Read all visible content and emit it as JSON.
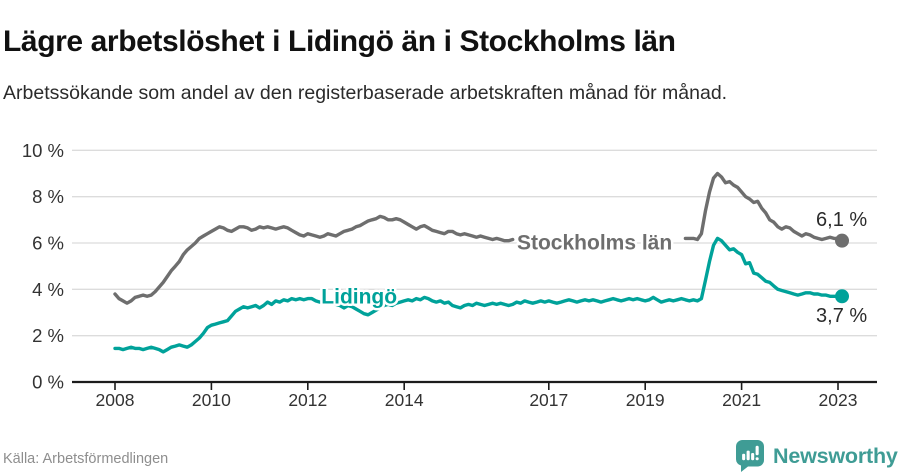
{
  "title": "Lägre arbetslöshet i Lidingö än i Stockholms län",
  "subtitle": "Arbetssökande som andel av den registerbaserade arbetskraften månad för månad.",
  "source": "Källa: Arbetsförmedlingen",
  "logo": {
    "text": "Newsworthy",
    "color": "#3f9c95",
    "icon": "newsworthy-speech-bubble-chart-icon"
  },
  "colors": {
    "stockholm_line": "#6e6e6e",
    "lidingo_line": "#00a29a",
    "axis": "#1c1c1c",
    "grid": "#dcdcdc",
    "tick_label": "#333333",
    "end_label": "#2b2b2b"
  },
  "chart_data": {
    "type": "line",
    "title": "Lägre arbetslöshet i Lidingö än i Stockholms län",
    "subtitle": "Arbetssökande som andel av den registerbaserade arbetskraften månad för månad.",
    "xlabel": "",
    "ylabel": "",
    "unit": "%",
    "grid": true,
    "legend_position": "inline-labels",
    "x_axis": {
      "start_year": 2008,
      "start_month": 1,
      "interval": "monthly",
      "tick_years": [
        2008,
        2010,
        2012,
        2014,
        2017,
        2019,
        2021,
        2023
      ]
    },
    "y_axis": {
      "ticks": [
        0,
        2,
        4,
        6,
        8,
        10
      ],
      "tick_suffix": " %",
      "ylim": [
        0,
        10
      ]
    },
    "series": [
      {
        "name": "Stockholms län",
        "color": "#6e6e6e",
        "end_label": "6,1 %",
        "end_label_side": "above",
        "label_anchor": {
          "year": 2016.34,
          "value": 5.72
        },
        "line_gap_years": [
          2016.25,
          2019.78
        ],
        "values": [
          3.8,
          3.6,
          3.5,
          3.4,
          3.5,
          3.65,
          3.7,
          3.75,
          3.7,
          3.75,
          3.9,
          4.1,
          4.3,
          4.55,
          4.8,
          5.0,
          5.2,
          5.5,
          5.7,
          5.85,
          6.0,
          6.2,
          6.3,
          6.4,
          6.5,
          6.6,
          6.7,
          6.65,
          6.55,
          6.5,
          6.6,
          6.7,
          6.7,
          6.65,
          6.55,
          6.6,
          6.7,
          6.65,
          6.7,
          6.65,
          6.6,
          6.65,
          6.7,
          6.65,
          6.55,
          6.45,
          6.35,
          6.3,
          6.4,
          6.35,
          6.3,
          6.25,
          6.3,
          6.4,
          6.35,
          6.3,
          6.4,
          6.5,
          6.55,
          6.6,
          6.7,
          6.75,
          6.85,
          6.95,
          7.0,
          7.05,
          7.15,
          7.1,
          7.0,
          7.0,
          7.05,
          7.0,
          6.9,
          6.8,
          6.7,
          6.6,
          6.7,
          6.75,
          6.65,
          6.55,
          6.5,
          6.45,
          6.4,
          6.5,
          6.5,
          6.4,
          6.35,
          6.4,
          6.35,
          6.3,
          6.25,
          6.3,
          6.25,
          6.2,
          6.15,
          6.2,
          6.15,
          6.1,
          6.1,
          6.15,
          6.1,
          6.05,
          6.0,
          6.05,
          6.1,
          6.05,
          6.0,
          6.0,
          6.0,
          5.95,
          5.9,
          5.95,
          6.0,
          5.95,
          5.9,
          5.95,
          6.0,
          5.95,
          5.9,
          5.95,
          5.9,
          5.85,
          5.85,
          5.9,
          5.9,
          5.85,
          5.9,
          5.95,
          6.0,
          6.0,
          6.05,
          6.1,
          6.1,
          6.1,
          6.15,
          6.1,
          6.15,
          6.2,
          6.2,
          6.15,
          6.2,
          6.2,
          6.2,
          6.2,
          6.2,
          6.15,
          6.4,
          7.4,
          8.2,
          8.8,
          9.0,
          8.85,
          8.6,
          8.65,
          8.5,
          8.4,
          8.2,
          8.0,
          7.9,
          7.75,
          7.8,
          7.5,
          7.3,
          7.0,
          6.9,
          6.7,
          6.6,
          6.7,
          6.65,
          6.5,
          6.4,
          6.3,
          6.4,
          6.35,
          6.25,
          6.2,
          6.15,
          6.2,
          6.25,
          6.2,
          6.2,
          6.1
        ]
      },
      {
        "name": "Lidingö",
        "color": "#00a29a",
        "end_label": "3,7 %",
        "end_label_side": "below",
        "label_anchor": {
          "year": 2012.28,
          "value": 3.38
        },
        "values": [
          1.45,
          1.45,
          1.4,
          1.45,
          1.5,
          1.45,
          1.45,
          1.4,
          1.45,
          1.5,
          1.45,
          1.4,
          1.3,
          1.4,
          1.5,
          1.55,
          1.6,
          1.55,
          1.5,
          1.6,
          1.75,
          1.9,
          2.1,
          2.35,
          2.45,
          2.5,
          2.55,
          2.6,
          2.65,
          2.85,
          3.05,
          3.15,
          3.25,
          3.2,
          3.25,
          3.3,
          3.2,
          3.3,
          3.45,
          3.35,
          3.5,
          3.45,
          3.55,
          3.5,
          3.6,
          3.55,
          3.6,
          3.55,
          3.6,
          3.6,
          3.5,
          3.45,
          3.5,
          3.4,
          3.45,
          3.35,
          3.3,
          3.2,
          3.3,
          3.25,
          3.15,
          3.05,
          2.95,
          2.9,
          3.0,
          3.1,
          3.2,
          3.3,
          3.35,
          3.3,
          3.4,
          3.45,
          3.5,
          3.55,
          3.5,
          3.6,
          3.55,
          3.65,
          3.6,
          3.5,
          3.45,
          3.5,
          3.4,
          3.45,
          3.3,
          3.25,
          3.2,
          3.3,
          3.35,
          3.3,
          3.4,
          3.35,
          3.3,
          3.35,
          3.4,
          3.35,
          3.4,
          3.35,
          3.3,
          3.35,
          3.45,
          3.4,
          3.5,
          3.45,
          3.4,
          3.45,
          3.5,
          3.45,
          3.5,
          3.45,
          3.4,
          3.45,
          3.5,
          3.55,
          3.5,
          3.45,
          3.5,
          3.55,
          3.5,
          3.55,
          3.5,
          3.45,
          3.5,
          3.55,
          3.6,
          3.55,
          3.5,
          3.55,
          3.6,
          3.55,
          3.6,
          3.55,
          3.5,
          3.55,
          3.65,
          3.55,
          3.45,
          3.5,
          3.55,
          3.5,
          3.55,
          3.6,
          3.55,
          3.5,
          3.55,
          3.5,
          3.6,
          4.4,
          5.2,
          5.9,
          6.2,
          6.1,
          5.9,
          5.7,
          5.75,
          5.6,
          5.5,
          5.1,
          5.15,
          4.7,
          4.65,
          4.5,
          4.35,
          4.3,
          4.15,
          4.0,
          3.95,
          3.9,
          3.85,
          3.8,
          3.75,
          3.8,
          3.85,
          3.85,
          3.8,
          3.8,
          3.75,
          3.75,
          3.7,
          3.7,
          3.7,
          3.7
        ]
      }
    ]
  }
}
